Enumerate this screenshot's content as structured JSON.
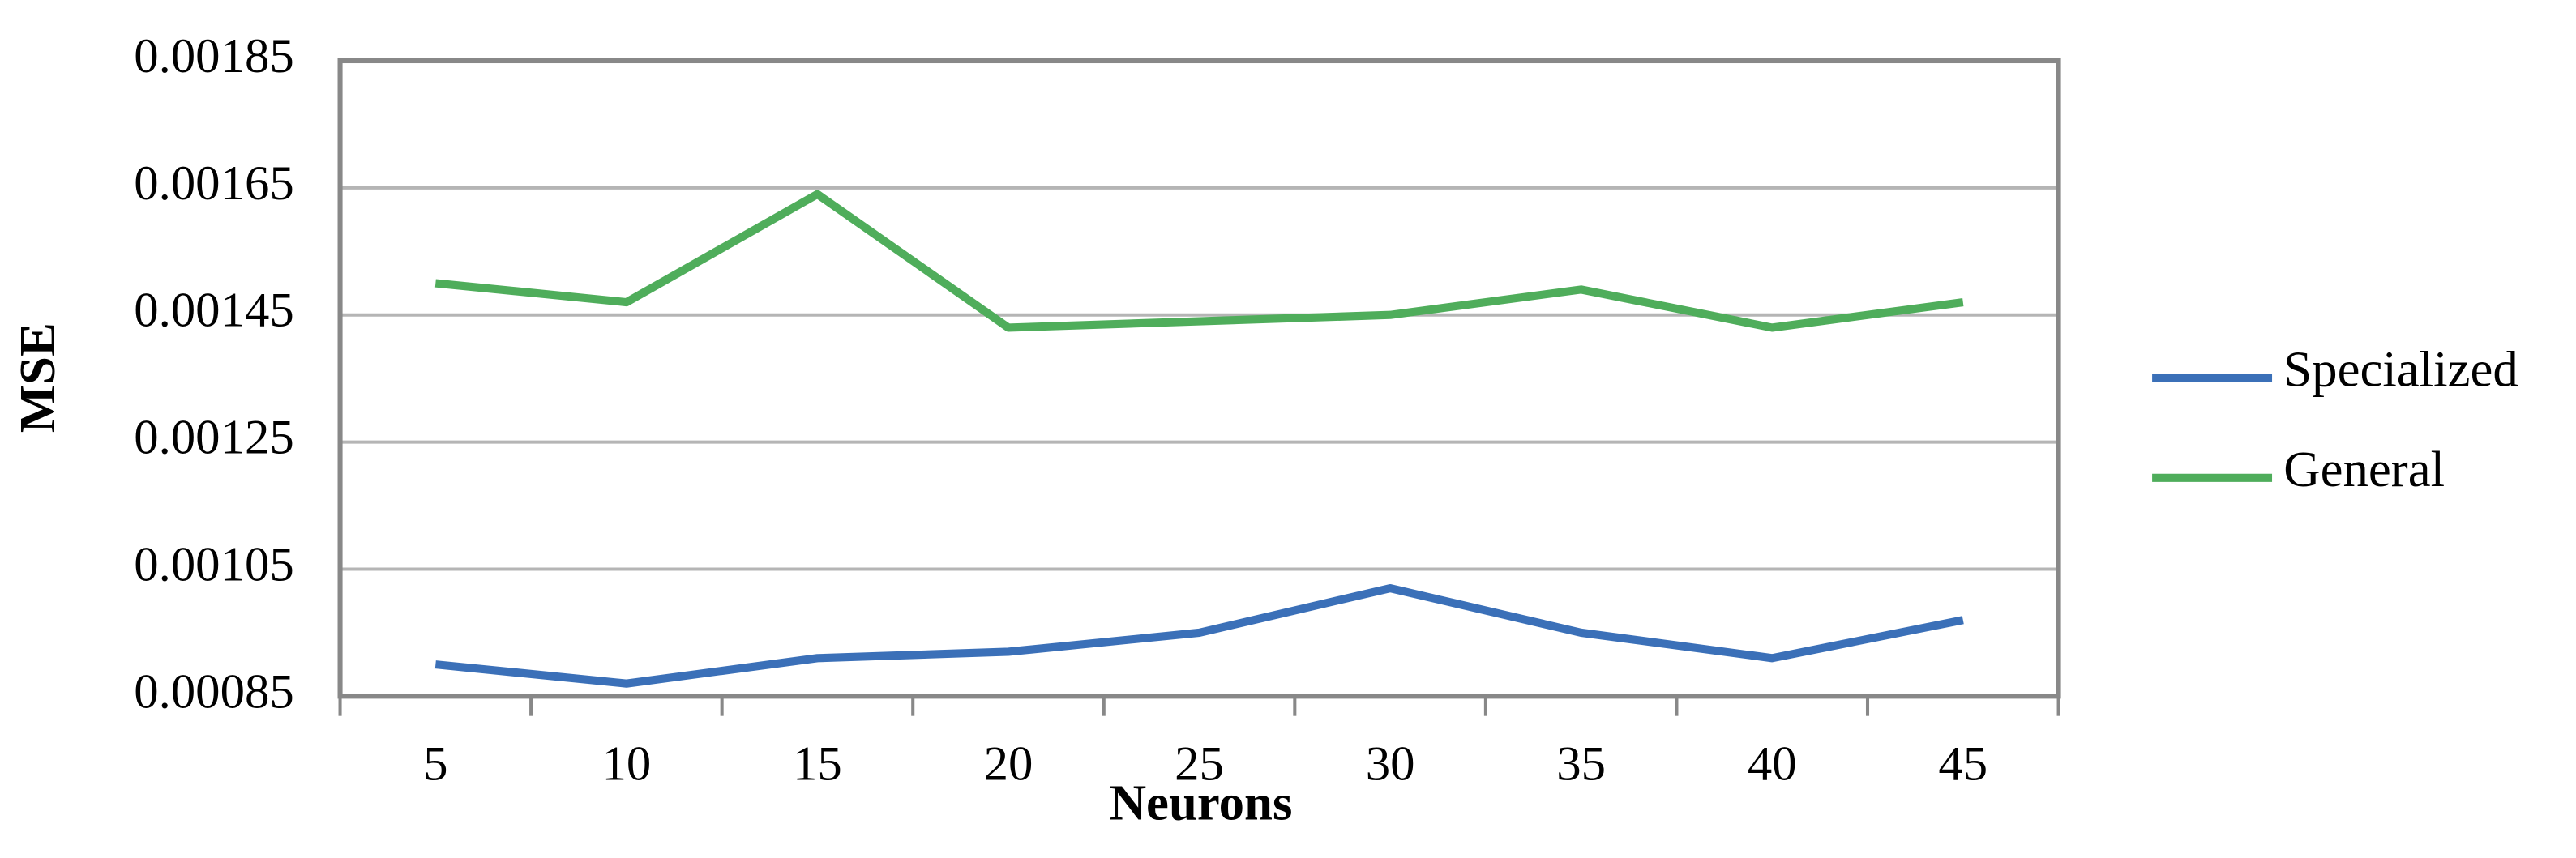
{
  "chart_data": {
    "type": "line",
    "x_label": "Neurons",
    "y_label": "MSE",
    "categories": [
      "5",
      "10",
      "15",
      "20",
      "25",
      "30",
      "35",
      "40",
      "45"
    ],
    "series": [
      {
        "name": "Specialized",
        "color": "#3b70b8",
        "values": [
          0.0009,
          0.00087,
          0.00091,
          0.00092,
          0.00095,
          0.00102,
          0.00095,
          0.00091,
          0.00097
        ]
      },
      {
        "name": "General",
        "color": "#4fad5b",
        "values": [
          0.0015,
          0.00147,
          0.00164,
          0.00143,
          0.00144,
          0.00145,
          0.00149,
          0.00143,
          0.00147
        ]
      }
    ],
    "ylim": [
      0.00085,
      0.00185
    ],
    "yticks": [
      0.00085,
      0.00105,
      0.00125,
      0.00145,
      0.00165,
      0.00185
    ],
    "grid": true,
    "legend": "right"
  }
}
